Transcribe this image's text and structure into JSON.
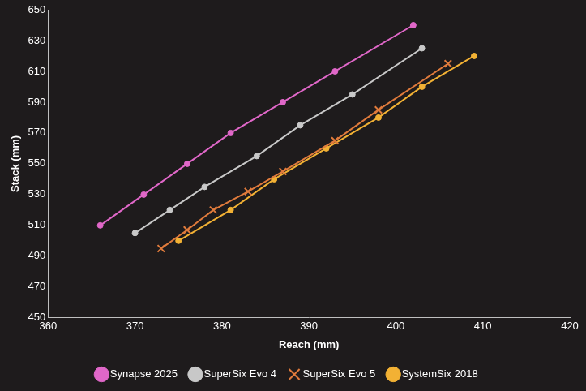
{
  "chart_data": {
    "type": "line",
    "x_label": "Reach (mm)",
    "y_label": "Stack (mm)",
    "xlim": [
      360,
      420
    ],
    "xticks": [
      360,
      370,
      380,
      390,
      400,
      410,
      420
    ],
    "ylim": [
      450,
      650
    ],
    "yticks": [
      450,
      470,
      490,
      510,
      530,
      550,
      570,
      590,
      610,
      630,
      650
    ],
    "grid": false,
    "legend": "bottom",
    "series": [
      {
        "name": "Synapse 2025",
        "color": "#e067c8",
        "marker": "circle",
        "x": [
          366,
          371,
          376,
          381,
          387,
          393,
          402
        ],
        "values": [
          510,
          530,
          550,
          570,
          590,
          610,
          640
        ]
      },
      {
        "name": "SuperSix Evo 4",
        "color": "#c8c8c8",
        "marker": "circle",
        "x": [
          370,
          374,
          378,
          384,
          389,
          395,
          403
        ],
        "values": [
          505,
          520,
          535,
          555,
          575,
          595,
          625
        ]
      },
      {
        "name": "SuperSix Evo 5",
        "color": "#e07b3c",
        "marker": "x",
        "x": [
          373,
          376,
          379,
          383,
          387,
          393,
          398,
          406
        ],
        "values": [
          495,
          507,
          520,
          532,
          545,
          565,
          585,
          615
        ]
      },
      {
        "name": "SystemSix 2018",
        "color": "#f2b134",
        "marker": "circle",
        "x": [
          375,
          381,
          386,
          392,
          398,
          403,
          409
        ],
        "values": [
          500,
          520,
          540,
          560,
          580,
          600,
          620
        ]
      }
    ]
  }
}
